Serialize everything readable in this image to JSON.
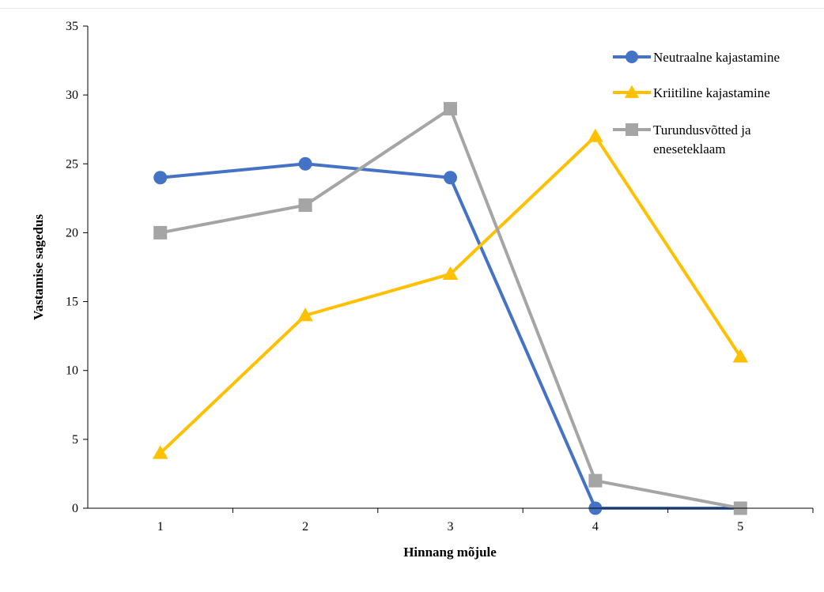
{
  "chart_data": {
    "type": "line",
    "title": "",
    "xlabel": "Hinnang mõjule",
    "ylabel": "Vastamise sagedus",
    "categories": [
      "1",
      "2",
      "3",
      "4",
      "5"
    ],
    "ylim": [
      0,
      35
    ],
    "yticks": [
      "0",
      "5",
      "10",
      "15",
      "20",
      "25",
      "30",
      "35"
    ],
    "grid": false,
    "legend_position": "top-right",
    "series": [
      {
        "name": "Neutraalne kajastamine",
        "color": "#4472C4",
        "marker": "circle",
        "values": [
          24,
          25,
          24,
          0,
          0
        ]
      },
      {
        "name": "Kriitiline kajastamine",
        "color": "#FFC000",
        "marker": "triangle",
        "values": [
          4,
          14,
          17,
          27,
          11
        ]
      },
      {
        "name": "Turundusvõtted ja eneseteklaam",
        "name_lines": [
          "Turundusvõtted ja",
          "eneseteklaam"
        ],
        "color": "#A5A5A5",
        "marker": "square",
        "values": [
          20,
          22,
          29,
          2,
          0
        ]
      }
    ]
  }
}
